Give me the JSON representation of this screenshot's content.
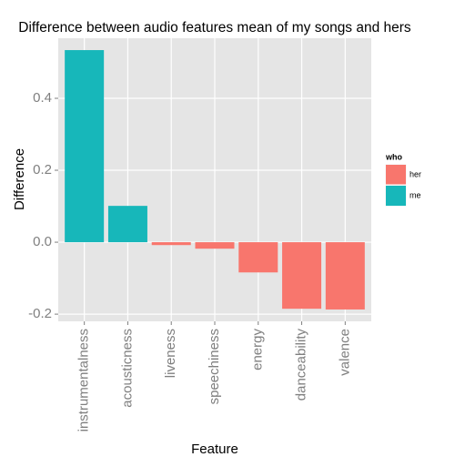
{
  "chart_data": {
    "type": "bar",
    "title": "Difference between audio features mean of my songs and hers",
    "x_label": "Feature",
    "y_label": "Difference",
    "categories": [
      "instrumentalness",
      "acousticness",
      "liveness",
      "speechiness",
      "energy",
      "danceability",
      "valence"
    ],
    "legend_title": "who",
    "series": [
      {
        "name": "her",
        "color": "#F8766D",
        "values": [
          null,
          null,
          -0.008,
          -0.018,
          -0.084,
          -0.185,
          -0.187
        ]
      },
      {
        "name": "me",
        "color": "#17B7BA",
        "values": [
          0.534,
          0.101,
          null,
          null,
          null,
          null,
          null
        ]
      }
    ],
    "ylim": [
      -0.22,
      0.567
    ],
    "yticks": [
      -0.2,
      {
        "value": 0,
        "label": "0.0"
      },
      0.2,
      0.4
    ],
    "grid": true,
    "legend": "right"
  }
}
